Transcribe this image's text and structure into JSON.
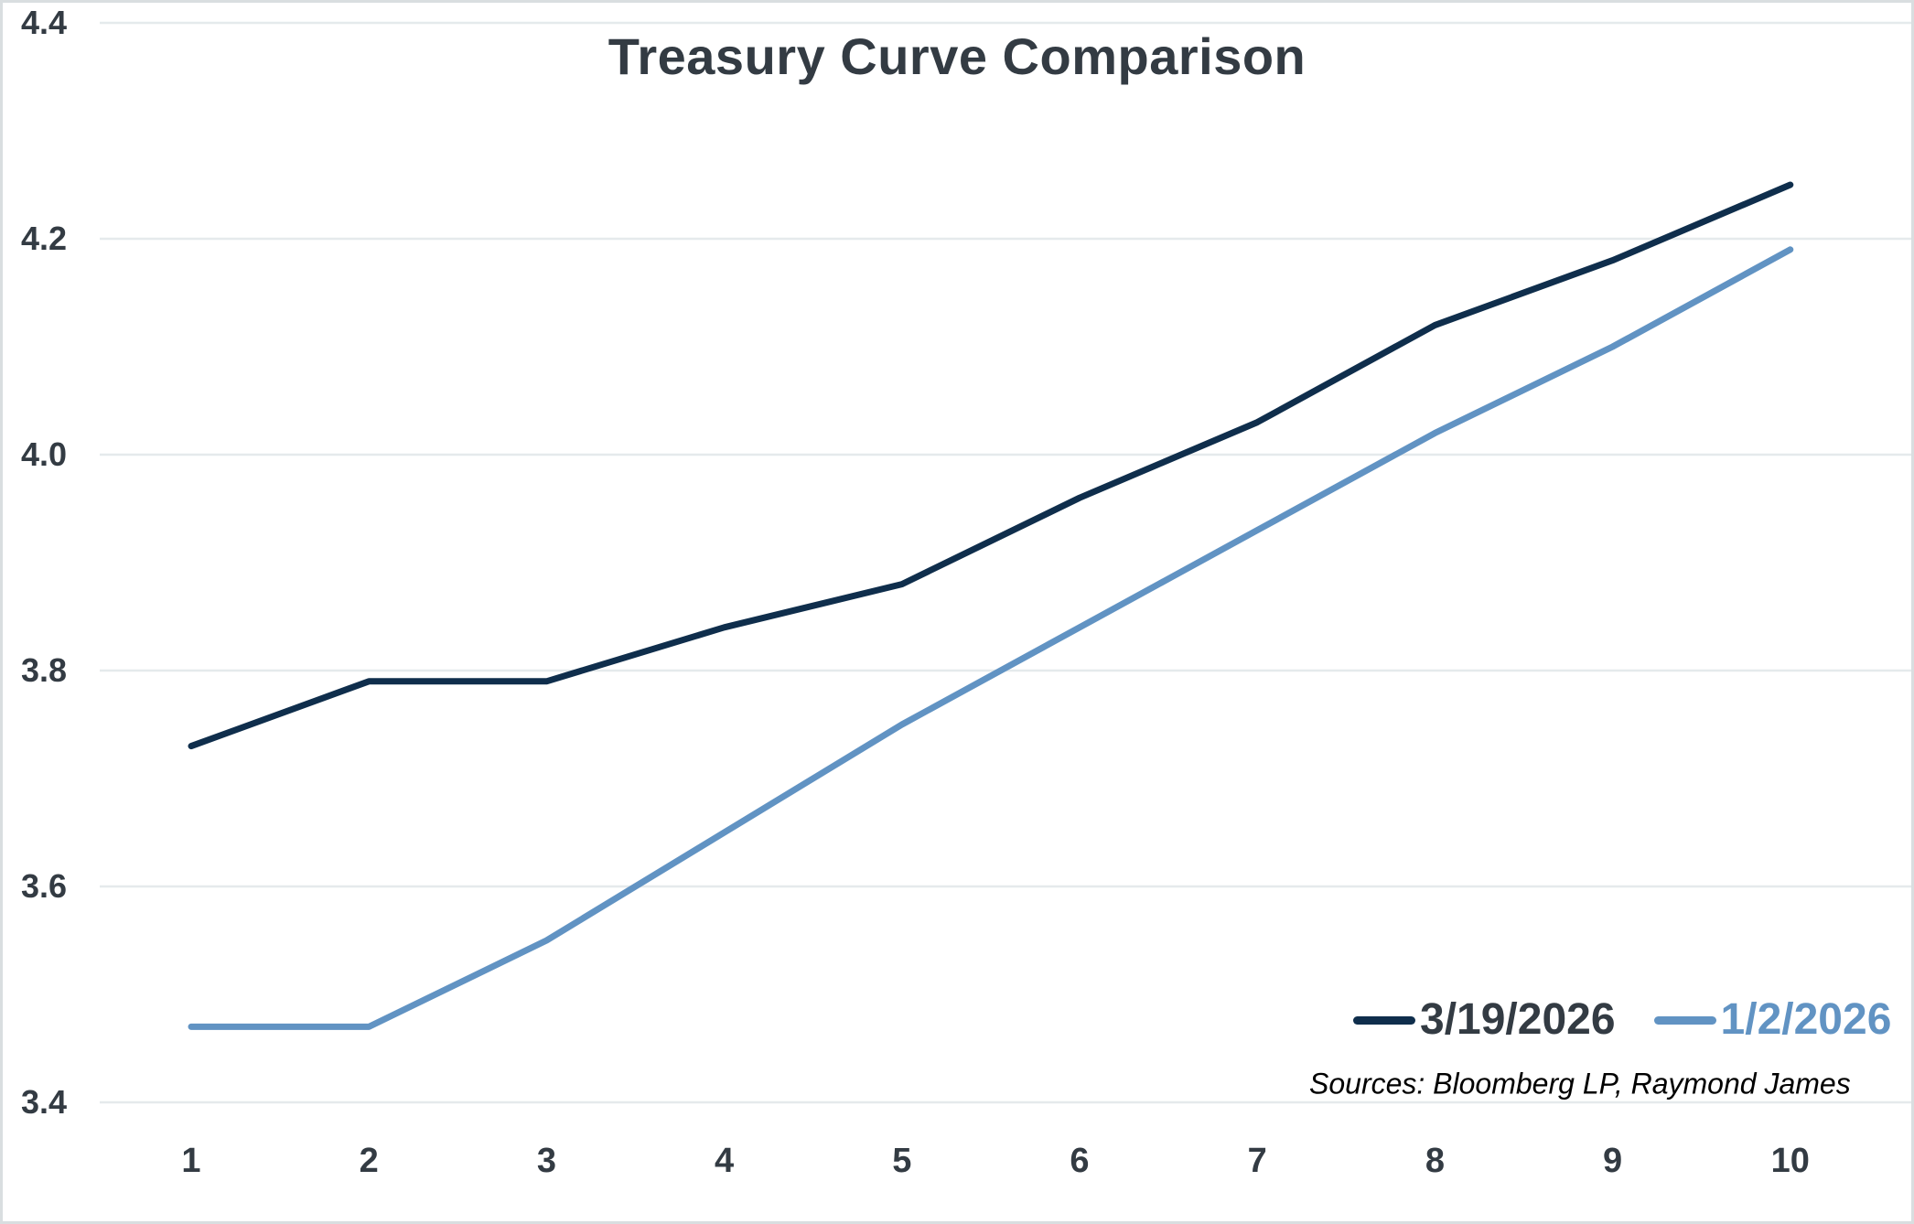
{
  "chart_data": {
    "type": "line",
    "title": "Treasury Curve Comparison",
    "xlabel": "",
    "ylabel": "",
    "x_categories": [
      "1",
      "2",
      "3",
      "4",
      "5",
      "6",
      "7",
      "8",
      "9",
      "10"
    ],
    "series": [
      {
        "name": "3/19/2026",
        "color": "#0f2e4c",
        "legend_text_color": "#333b43",
        "values": [
          3.73,
          3.79,
          3.79,
          3.84,
          3.88,
          3.96,
          4.03,
          4.12,
          4.18,
          4.25
        ]
      },
      {
        "name": "1/2/2026",
        "color": "#6193c3",
        "legend_text_color": "#6193c3",
        "values": [
          3.47,
          3.47,
          3.55,
          3.65,
          3.75,
          3.84,
          3.93,
          4.02,
          4.1,
          4.19
        ]
      }
    ],
    "ylim": [
      3.4,
      4.4
    ],
    "ytick_labels": [
      "3.4",
      "3.6",
      "3.8",
      "4.0",
      "4.2",
      "4.4"
    ],
    "grid": "horizontal",
    "legend_position": "inside-bottom-right",
    "source_note": "Sources: Bloomberg LP, Raymond James"
  },
  "style": {
    "background": "#ffffff",
    "border_color": "#d9dee0",
    "gridline_color": "#e5eaec",
    "axis_text_color": "#333b43",
    "title_color": "#333b43"
  }
}
